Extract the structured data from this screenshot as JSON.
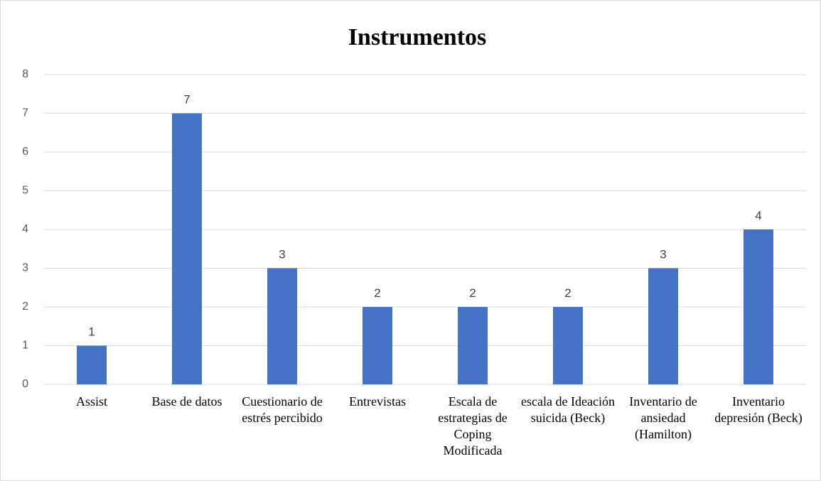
{
  "chart_data": {
    "type": "bar",
    "title": "Instrumentos",
    "categories": [
      "Assist",
      "Base de datos",
      "Cuestionario de estrés percibido",
      "Entrevistas",
      "Escala de estrategias de Coping Modificada",
      "escala de Ideación suicida (Beck)",
      "Inventario de ansiedad (Hamilton)",
      "Inventario depresión (Beck)"
    ],
    "values": [
      1,
      7,
      3,
      2,
      2,
      2,
      3,
      4
    ],
    "color": "#4472c4",
    "ylim": [
      0,
      8
    ],
    "yticks": [
      0,
      1,
      2,
      3,
      4,
      5,
      6,
      7,
      8
    ],
    "grid": true
  }
}
